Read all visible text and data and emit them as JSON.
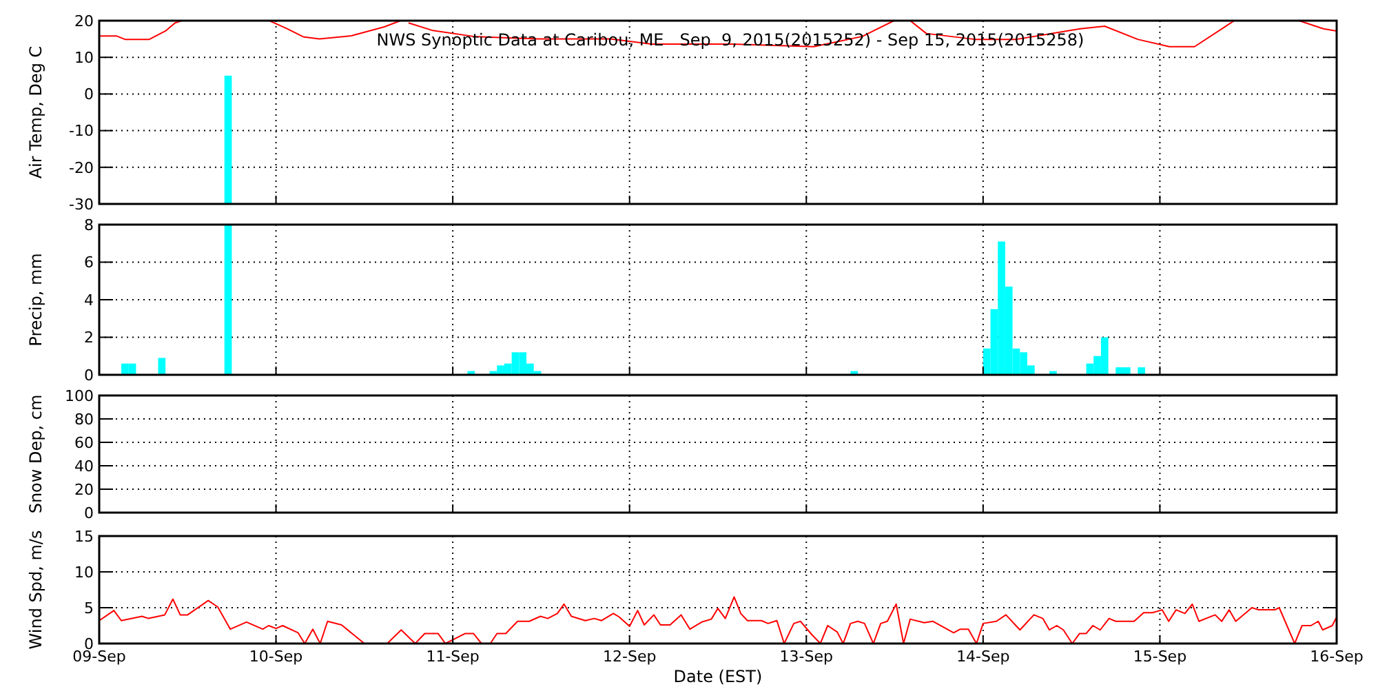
{
  "chart_data": [
    {
      "type": "line",
      "title": "NWS Synoptic Data at Caribou, ME   Sep  9, 2015(2015252) - Sep 15, 2015(2015258)",
      "ylabel": "Air Temp, Deg C",
      "xlim": [
        "2015-09-09T00:00",
        "2015-09-16T00:00"
      ],
      "xticks": [
        {
          "value": "2015-09-09",
          "label": null
        },
        {
          "value": "2015-09-10",
          "label": null
        },
        {
          "value": "2015-09-11",
          "label": null
        },
        {
          "value": "2015-09-12",
          "label": null
        },
        {
          "value": "2015-09-13",
          "label": null
        },
        {
          "value": "2015-09-14",
          "label": null
        },
        {
          "value": "2015-09-15",
          "label": null
        },
        {
          "value": "2015-09-16",
          "label": null
        }
      ],
      "ylim": [
        -30,
        20
      ],
      "yticks": [
        -30,
        -20,
        -10,
        0,
        10,
        20
      ],
      "grid": true,
      "tick_labels": "y",
      "series": [
        {
          "color": "#ff0000",
          "x": [
            "2015-09-09T00:00",
            "2015-09-09T02:24",
            "2015-09-09T03:30",
            "2015-09-09T06:48",
            "2015-09-09T09:00",
            "2015-09-09T10:18",
            "2015-09-09T11:12",
            "2015-09-09T17:00",
            "2015-09-09T23:06",
            "2015-09-10T01:30",
            "2015-09-10T03:42",
            "2015-09-10T05:54",
            "2015-09-10T10:18",
            "2015-09-10T14:42",
            "2015-09-10T16:54",
            "2015-09-10T17:30",
            "2015-09-10T18:00",
            "2015-09-10T21:18",
            "2015-09-11T02:48",
            "2015-09-11T11:36",
            "2015-09-11T21:24",
            "2015-09-12T03:00",
            "2015-09-12T14:00",
            "2015-09-13T01:00",
            "2015-09-13T07:36",
            "2015-09-13T11:54",
            "2015-09-13T13:00",
            "2015-09-13T14:06",
            "2015-09-13T16:18",
            "2015-09-13T22:54",
            "2015-09-14T04:30",
            "2015-09-14T13:12",
            "2015-09-14T16:30",
            "2015-09-14T21:00",
            "2015-09-15T01:18",
            "2015-09-15T04:42",
            "2015-09-15T10:06",
            "2015-09-15T14:00",
            "2015-09-15T18:54",
            "2015-09-15T22:12",
            "2015-09-16T00:00"
          ],
          "values": [
            15.8,
            15.8,
            14.9,
            14.9,
            17.2,
            19.4,
            20,
            null,
            20,
            17.8,
            15.6,
            15,
            15.9,
            18.3,
            20,
            null,
            19.4,
            17.3,
            15.7,
            15,
            15,
            13.6,
            13.6,
            12.9,
            15.7,
            20,
            null,
            20,
            16.5,
            14.9,
            14.9,
            17.8,
            18.5,
            14.9,
            12.9,
            12.9,
            20,
            null,
            20,
            17.8,
            17.2
          ]
        },
        {
          "type": "bar",
          "color": "#00ffff",
          "x": [
            "2015-09-09T17:30"
          ],
          "base": [
            -30
          ],
          "values": [
            35
          ]
        }
      ]
    },
    {
      "type": "bar",
      "ylabel": "Precip, mm",
      "xlim": [
        "2015-09-09T00:00",
        "2015-09-16T00:00"
      ],
      "xticks": [
        {
          "value": "2015-09-09",
          "label": null
        },
        {
          "value": "2015-09-10",
          "label": null
        },
        {
          "value": "2015-09-11",
          "label": null
        },
        {
          "value": "2015-09-12",
          "label": null
        },
        {
          "value": "2015-09-13",
          "label": null
        },
        {
          "value": "2015-09-14",
          "label": null
        },
        {
          "value": "2015-09-15",
          "label": null
        },
        {
          "value": "2015-09-16",
          "label": null
        }
      ],
      "ylim": [
        0,
        8
      ],
      "yticks": [
        0,
        2,
        4,
        6,
        8
      ],
      "grid": true,
      "tick_labels": "y",
      "series": [
        {
          "color": "#00ffff",
          "x": [
            "2015-09-09T03:30",
            "2015-09-09T04:30",
            "2015-09-09T08:30",
            "2015-09-09T17:30",
            "2015-09-11T02:30",
            "2015-09-11T05:30",
            "2015-09-11T06:30",
            "2015-09-11T07:30",
            "2015-09-11T08:30",
            "2015-09-11T09:30",
            "2015-09-11T10:30",
            "2015-09-11T11:30",
            "2015-09-13T06:30",
            "2015-09-14T00:30",
            "2015-09-14T01:30",
            "2015-09-14T02:30",
            "2015-09-14T03:30",
            "2015-09-14T04:30",
            "2015-09-14T05:30",
            "2015-09-14T06:30",
            "2015-09-14T09:30",
            "2015-09-14T14:30",
            "2015-09-14T15:30",
            "2015-09-14T16:30",
            "2015-09-14T18:30",
            "2015-09-14T19:30",
            "2015-09-14T21:30"
          ],
          "values": [
            0.6,
            0.6,
            0.9,
            8,
            0.2,
            0.2,
            0.5,
            0.6,
            1.2,
            1.2,
            0.6,
            0.2,
            0.2,
            1.4,
            3.5,
            7.1,
            4.7,
            1.4,
            1.2,
            0.5,
            0.2,
            0.6,
            1.0,
            2.0,
            0.4,
            0.4,
            0.4
          ]
        }
      ]
    },
    {
      "type": "line",
      "ylabel": "Snow Dep, cm",
      "xlim": [
        "2015-09-09T00:00",
        "2015-09-16T00:00"
      ],
      "xticks": [
        {
          "value": "2015-09-09",
          "label": null
        },
        {
          "value": "2015-09-10",
          "label": null
        },
        {
          "value": "2015-09-11",
          "label": null
        },
        {
          "value": "2015-09-12",
          "label": null
        },
        {
          "value": "2015-09-13",
          "label": null
        },
        {
          "value": "2015-09-14",
          "label": null
        },
        {
          "value": "2015-09-15",
          "label": null
        },
        {
          "value": "2015-09-16",
          "label": null
        }
      ],
      "ylim": [
        0,
        100
      ],
      "yticks": [
        0,
        20,
        40,
        60,
        80,
        100
      ],
      "grid": true,
      "tick_labels": "y"
    },
    {
      "type": "line",
      "xlabel": "Date (EST)",
      "ylabel": "Wind Spd, m/s",
      "xlim": [
        "2015-09-09T00:00",
        "2015-09-16T00:00"
      ],
      "xticks": [
        {
          "value": "2015-09-09",
          "label": "09-Sep"
        },
        {
          "value": "2015-09-10",
          "label": "10-Sep"
        },
        {
          "value": "2015-09-11",
          "label": "11-Sep"
        },
        {
          "value": "2015-09-12",
          "label": "12-Sep"
        },
        {
          "value": "2015-09-13",
          "label": "13-Sep"
        },
        {
          "value": "2015-09-14",
          "label": "14-Sep"
        },
        {
          "value": "2015-09-15",
          "label": "15-Sep"
        },
        {
          "value": "2015-09-16",
          "label": "16-Sep"
        }
      ],
      "ylim": [
        0,
        15
      ],
      "yticks": [
        0,
        5,
        10,
        15
      ],
      "grid": true,
      "series": [
        {
          "color": "#ff0000",
          "x": [
            "2015-09-09T00:00",
            "2015-09-09T02:00",
            "2015-09-09T03:00",
            "2015-09-09T05:48",
            "2015-09-09T06:42",
            "2015-09-09T08:54",
            "2015-09-09T10:00",
            "2015-09-09T11:00",
            "2015-09-09T12:00",
            "2015-09-09T14:48",
            "2015-09-09T16:06",
            "2015-09-09T17:48",
            "2015-09-09T20:00",
            "2015-09-09T22:12",
            "2015-09-09T23:00",
            "2015-09-10T00:00",
            "2015-09-10T00:54",
            "2015-09-10T03:00",
            "2015-09-10T03:54",
            "2015-09-10T05:00",
            "2015-09-10T06:00",
            "2015-09-10T07:00",
            "2015-09-10T08:54",
            "2015-09-10T12:00",
            "2015-09-10T15:06",
            "2015-09-10T17:00",
            "2015-09-10T18:54",
            "2015-09-10T20:12",
            "2015-09-10T22:00",
            "2015-09-10T23:00",
            "2015-09-11T01:42",
            "2015-09-11T02:48",
            "2015-09-11T03:54",
            "2015-09-11T05:06",
            "2015-09-11T06:00",
            "2015-09-11T07:12",
            "2015-09-11T08:48",
            "2015-09-11T10:24",
            "2015-09-11T11:54",
            "2015-09-11T12:54",
            "2015-09-11T14:12",
            "2015-09-11T15:06",
            "2015-09-11T16:06",
            "2015-09-11T18:00",
            "2015-09-11T19:12",
            "2015-09-11T20:12",
            "2015-09-11T21:48",
            "2015-09-11T22:36",
            "2015-09-12T00:00",
            "2015-09-12T01:06",
            "2015-09-12T02:00",
            "2015-09-12T03:18",
            "2015-09-12T04:12",
            "2015-09-12T05:30",
            "2015-09-12T07:00",
            "2015-09-12T08:12",
            "2015-09-12T09:48",
            "2015-09-12T11:06",
            "2015-09-12T12:00",
            "2015-09-12T13:00",
            "2015-09-12T14:12",
            "2015-09-12T15:06",
            "2015-09-12T16:00",
            "2015-09-12T17:54",
            "2015-09-12T18:48",
            "2015-09-12T20:00",
            "2015-09-12T21:00",
            "2015-09-12T22:18",
            "2015-09-12T23:12",
            "2015-09-13T00:42",
            "2015-09-13T01:54",
            "2015-09-13T02:54",
            "2015-09-13T04:12",
            "2015-09-13T05:00",
            "2015-09-13T06:00",
            "2015-09-13T07:00",
            "2015-09-13T07:54",
            "2015-09-13T09:06",
            "2015-09-13T10:06",
            "2015-09-13T11:00",
            "2015-09-13T12:12",
            "2015-09-13T13:12",
            "2015-09-13T14:06",
            "2015-09-13T16:00",
            "2015-09-13T17:12",
            "2015-09-13T20:00",
            "2015-09-13T20:54",
            "2015-09-13T22:00",
            "2015-09-13T23:06",
            "2015-09-14T00:00",
            "2015-09-14T01:48",
            "2015-09-14T03:06",
            "2015-09-14T05:00",
            "2015-09-14T06:54",
            "2015-09-14T08:06",
            "2015-09-14T09:00",
            "2015-09-14T10:00",
            "2015-09-14T10:54",
            "2015-09-14T12:06",
            "2015-09-14T13:06",
            "2015-09-14T14:00",
            "2015-09-14T14:54",
            "2015-09-14T15:54",
            "2015-09-14T17:06",
            "2015-09-14T18:00",
            "2015-09-14T20:30",
            "2015-09-14T21:48",
            "2015-09-14T23:00",
            "2015-09-15T00:18",
            "2015-09-15T01:12",
            "2015-09-15T02:12",
            "2015-09-15T03:24",
            "2015-09-15T04:24",
            "2015-09-15T05:18",
            "2015-09-15T07:30",
            "2015-09-15T08:24",
            "2015-09-15T09:24",
            "2015-09-15T10:18",
            "2015-09-15T12:30",
            "2015-09-15T13:24",
            "2015-09-15T15:36",
            "2015-09-15T16:12",
            "2015-09-15T18:18",
            "2015-09-15T19:18",
            "2015-09-15T20:30",
            "2015-09-15T21:30",
            "2015-09-15T22:06",
            "2015-09-15T23:24",
            "2015-09-16T00:00"
          ],
          "values": [
            3.2,
            4.6,
            3.2,
            3.8,
            3.5,
            4.0,
            6.2,
            4.0,
            4.0,
            6.0,
            5.1,
            2.0,
            3.0,
            2.0,
            2.5,
            2.1,
            2.5,
            1.5,
            0,
            2.0,
            0,
            3.1,
            2.6,
            0,
            0,
            1.9,
            0,
            1.4,
            1.4,
            0,
            1.4,
            1.4,
            0,
            0,
            1.4,
            1.4,
            3.1,
            3.1,
            3.8,
            3.5,
            4.2,
            5.5,
            3.8,
            3.2,
            3.5,
            3.2,
            4.2,
            3.7,
            2.4,
            4.6,
            2.6,
            4.0,
            2.6,
            2.6,
            4.0,
            2.0,
            3.0,
            3.4,
            4.9,
            3.5,
            6.5,
            4.2,
            3.2,
            3.2,
            2.8,
            3.2,
            0,
            2.8,
            3.1,
            1.3,
            0,
            2.5,
            1.6,
            0,
            2.8,
            3.1,
            2.8,
            0,
            2.8,
            3.1,
            5.5,
            0,
            3.4,
            2.9,
            3.1,
            1.5,
            2.0,
            2.0,
            0,
            2.8,
            3.1,
            4.0,
            1.9,
            4.0,
            3.5,
            1.9,
            2.5,
            1.9,
            0,
            1.4,
            1.4,
            2.5,
            1.9,
            3.5,
            3.1,
            3.1,
            4.3,
            4.3,
            4.7,
            3.1,
            4.7,
            4.2,
            5.5,
            3.1,
            4.0,
            3.1,
            4.7,
            3.1,
            5.0,
            4.7,
            4.7,
            5.0,
            0,
            2.5,
            2.5,
            3.1,
            1.9,
            2.5,
            3.7
          ]
        }
      ]
    }
  ]
}
